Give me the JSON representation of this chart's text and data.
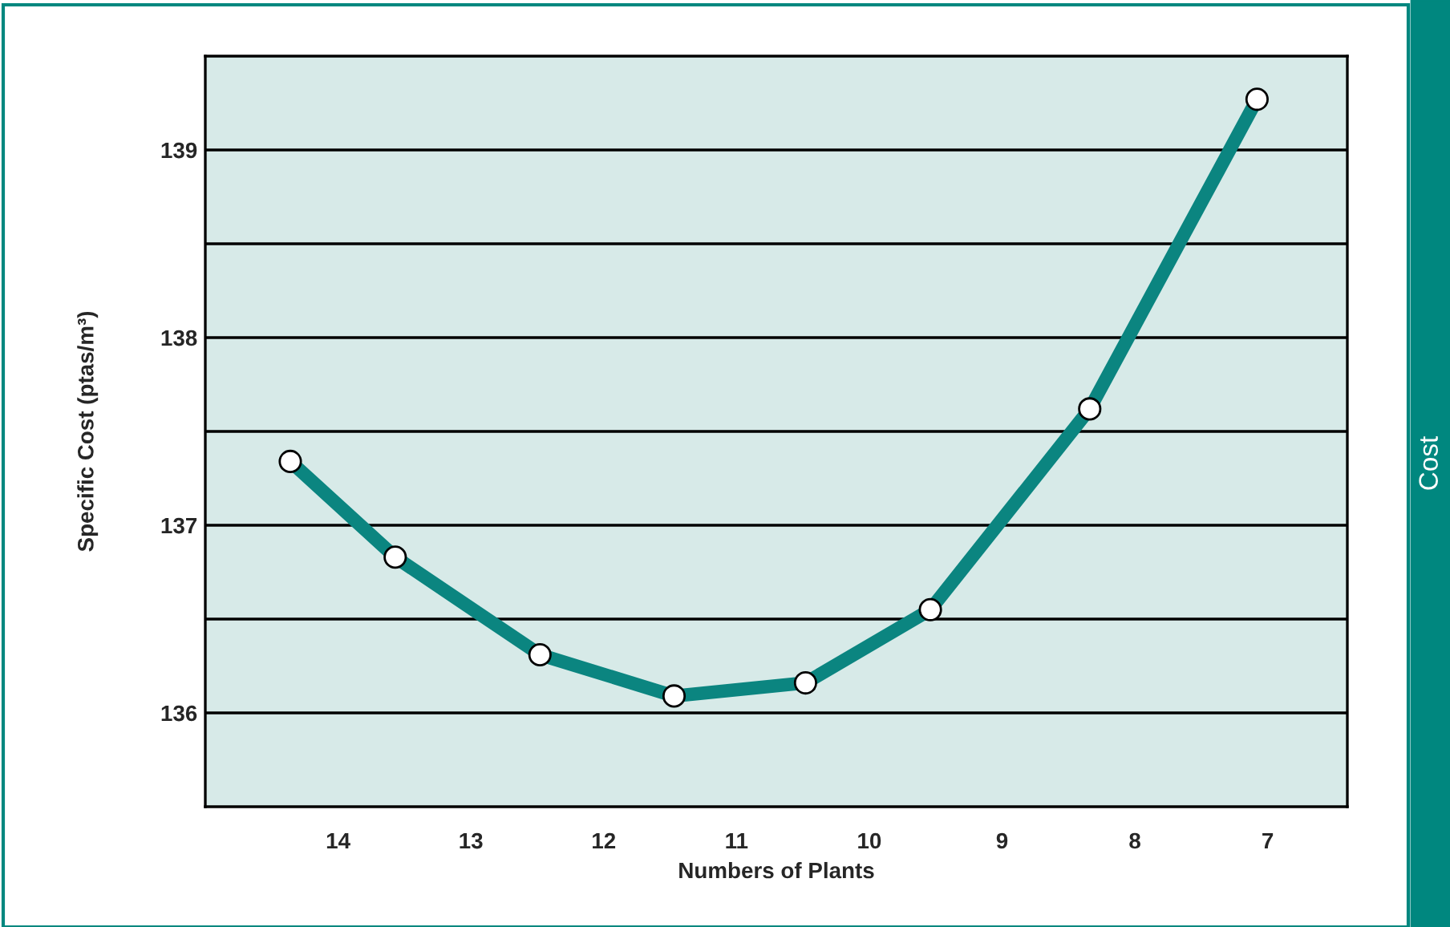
{
  "chart_data": {
    "type": "line",
    "xlabel": "Numbers of Plants",
    "ylabel": "Specific Cost (ptas/m³)",
    "annotations": [
      "Cost"
    ],
    "x": [
      14.36,
      13.57,
      12.48,
      11.47,
      10.48,
      9.54,
      8.34,
      7.08
    ],
    "series": [
      {
        "color": "#0b8580",
        "values": [
          137.34,
          136.83,
          136.31,
          136.09,
          136.16,
          136.55,
          137.62,
          139.27
        ]
      }
    ],
    "xlim": [
      15,
      6.4
    ],
    "xticks": [
      14,
      13,
      12,
      11,
      10,
      9,
      8,
      7
    ],
    "ylim": [
      135.5,
      139.5
    ],
    "yticks": [
      136,
      {
        "value": 136.5,
        "label": null
      },
      137,
      {
        "value": 137.5,
        "label": null
      },
      138,
      {
        "value": 138.5,
        "label": null
      },
      139
    ],
    "grid": "y",
    "marker": "circle",
    "line_style": "solid"
  }
}
